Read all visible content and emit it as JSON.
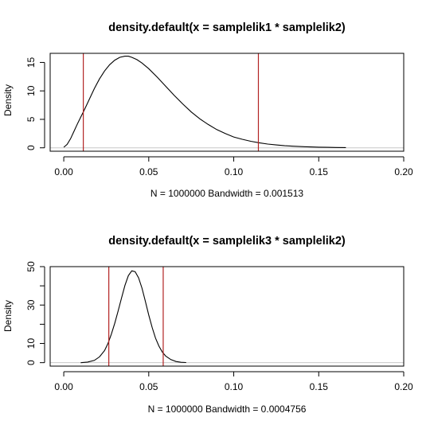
{
  "chart_data": [
    {
      "type": "line",
      "title": "density.default(x = samplelik1 * samplelik2)",
      "xlabel": "N = 1000000   Bandwidth = 0.001513",
      "ylabel": "Density",
      "xlim": [
        -0.008,
        0.2
      ],
      "ylim": [
        -0.6,
        16.6
      ],
      "x_ticks": [
        0.0,
        0.05,
        0.1,
        0.15,
        0.2
      ],
      "x_tick_labels": [
        "0.00",
        "0.05",
        "0.10",
        "0.15",
        "0.20"
      ],
      "y_ticks": [
        0,
        5,
        10,
        15
      ],
      "y_tick_labels": [
        "0",
        "5",
        "10",
        "15"
      ],
      "grid": false,
      "vlines": [
        0.0115,
        0.1145
      ],
      "vline_color": "#b22222",
      "baseline_color": "#c8c8c8",
      "series": [
        {
          "x": [
            0.0,
            0.002,
            0.004,
            0.006,
            0.008,
            0.01,
            0.012,
            0.015,
            0.018,
            0.021,
            0.024,
            0.027,
            0.03,
            0.033,
            0.036,
            0.038,
            0.04,
            0.043,
            0.046,
            0.05,
            0.055,
            0.06,
            0.065,
            0.07,
            0.075,
            0.08,
            0.085,
            0.09,
            0.095,
            0.1,
            0.105,
            0.11,
            0.115,
            0.12,
            0.125,
            0.13,
            0.135,
            0.14,
            0.145,
            0.15,
            0.155,
            0.16,
            0.166
          ],
          "y": [
            0.1,
            0.6,
            1.6,
            2.9,
            4.2,
            5.4,
            6.6,
            8.5,
            10.4,
            12.1,
            13.5,
            14.6,
            15.4,
            15.9,
            16.1,
            16.1,
            15.9,
            15.5,
            14.9,
            13.9,
            12.4,
            10.8,
            9.2,
            7.7,
            6.3,
            5.1,
            4.1,
            3.2,
            2.5,
            1.9,
            1.5,
            1.15,
            0.88,
            0.66,
            0.5,
            0.37,
            0.28,
            0.21,
            0.16,
            0.12,
            0.09,
            0.06,
            0.05
          ]
        }
      ]
    },
    {
      "type": "line",
      "title": "density.default(x = samplelik3 * samplelik2)",
      "xlabel": "N = 1000000   Bandwidth = 0.0004756",
      "ylabel": "Density",
      "xlim": [
        -0.008,
        0.2
      ],
      "ylim": [
        -1.8,
        50
      ],
      "x_ticks": [
        0.0,
        0.05,
        0.1,
        0.15,
        0.2
      ],
      "x_tick_labels": [
        "0.00",
        "0.05",
        "0.10",
        "0.15",
        "0.20"
      ],
      "y_ticks": [
        0,
        10,
        20,
        30,
        40,
        50
      ],
      "y_tick_labels": [
        "0",
        "10",
        "",
        "30",
        "",
        "50"
      ],
      "grid": false,
      "vlines": [
        0.0265,
        0.0585
      ],
      "vline_color": "#b22222",
      "baseline_color": "#c8c8c8",
      "series": [
        {
          "x": [
            0.01,
            0.014,
            0.018,
            0.021,
            0.024,
            0.026,
            0.028,
            0.03,
            0.032,
            0.034,
            0.036,
            0.038,
            0.04,
            0.042,
            0.044,
            0.046,
            0.048,
            0.05,
            0.052,
            0.054,
            0.056,
            0.058,
            0.06,
            0.063,
            0.066,
            0.069,
            0.072
          ],
          "y": [
            0.0,
            0.3,
            1.2,
            3.0,
            6.3,
            10.0,
            14.8,
            20.5,
            27.0,
            33.8,
            40.2,
            45.3,
            47.8,
            47.4,
            44.2,
            38.8,
            32.0,
            24.8,
            18.3,
            12.8,
            8.6,
            5.5,
            3.4,
            1.6,
            0.6,
            0.2,
            0.05
          ]
        }
      ]
    }
  ]
}
